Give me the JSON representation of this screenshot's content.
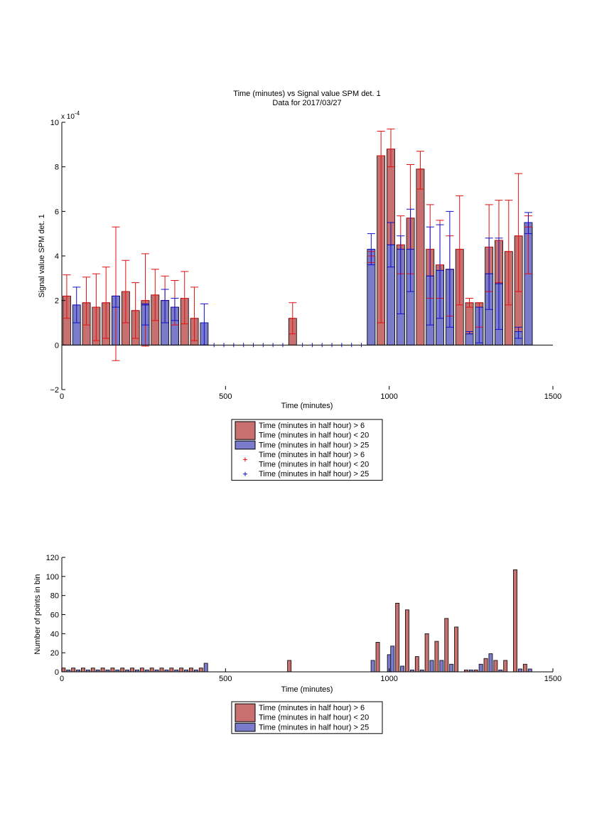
{
  "chart_data": [
    {
      "type": "bar",
      "title": "Time (minutes) vs Signal value SPM det. 1",
      "subtitle": "Data for 2017/03/27",
      "xlabel": "Time (minutes)",
      "ylabel": "Signal value SPM det. 1",
      "exponent_label": "x 10",
      "exponent_power": "-4",
      "xlim": [
        0,
        1500
      ],
      "ylim": [
        -2,
        10
      ],
      "xticks": [
        "0",
        "500",
        "1000",
        "1500"
      ],
      "yticks": [
        "−2",
        "0",
        "2",
        "4",
        "6",
        "8",
        "10"
      ],
      "legend_position": "below",
      "legend": [
        {
          "text": [
            "Time (minutes in half hour) > 6",
            "Time (minutes in half hour) < 20"
          ],
          "marker": "patch",
          "color": "#c87070"
        },
        {
          "text": [
            "Time (minutes in half hour) > 25"
          ],
          "marker": "patch",
          "color": "#7b7bcc"
        },
        {
          "text": [
            "Time (minutes in half hour) > 6",
            "Time (minutes in half hour) < 20"
          ],
          "marker": "plus",
          "color": "#e01010"
        },
        {
          "text": [
            "Time (minutes in half hour) > 25"
          ],
          "marker": "plus",
          "color": "#1010c8"
        }
      ],
      "series": [
        {
          "name": "Time (minutes in half hour) > 6 / Time (minutes in half hour) < 20",
          "color": "#c87070",
          "error_color": "#e01010",
          "x": [
            15,
            75,
            105,
            135,
            165,
            195,
            225,
            255,
            285,
            315,
            345,
            375,
            405,
            705,
            945,
            975,
            1005,
            1035,
            1065,
            1095,
            1125,
            1155,
            1185,
            1215,
            1245,
            1275,
            1305,
            1335,
            1365,
            1395,
            1425
          ],
          "values": [
            2.2,
            1.9,
            1.7,
            1.9,
            2.2,
            2.4,
            1.55,
            2.0,
            2.25,
            2.0,
            1.7,
            2.1,
            1.2,
            1.2,
            4.0,
            8.5,
            8.8,
            4.5,
            5.7,
            7.9,
            4.3,
            3.6,
            3.4,
            4.3,
            1.9,
            1.9,
            4.4,
            4.7,
            4.2,
            4.9,
            5.3
          ],
          "error_low": [
            1.2,
            0.9,
            0.2,
            0.3,
            -0.7,
            1.0,
            0.3,
            -0.05,
            1.1,
            1.0,
            0.9,
            0.95,
            0.2,
            0.5,
            3.7,
            1.0,
            8.0,
            3.2,
            3.2,
            7.0,
            2.1,
            2.1,
            1.3,
            1.8,
            1.7,
            0.8,
            2.4,
            2.8,
            1.8,
            2.4,
            3.2
          ],
          "error_high": [
            3.15,
            3.05,
            3.2,
            3.5,
            5.3,
            3.8,
            2.8,
            4.1,
            3.4,
            3.1,
            2.9,
            3.3,
            2.6,
            1.9,
            4.2,
            9.6,
            9.7,
            5.8,
            8.1,
            8.7,
            6.3,
            5.6,
            4.9,
            6.7,
            2.1,
            1.9,
            6.3,
            6.5,
            6.5,
            7.7,
            5.8
          ]
        },
        {
          "name": "Time (minutes in half hour) > 25",
          "color": "#7b7bcc",
          "error_color": "#1010c8",
          "x": [
            45,
            165,
            255,
            315,
            345,
            435,
            945,
            1005,
            1035,
            1065,
            1125,
            1155,
            1185,
            1245,
            1275,
            1305,
            1335,
            1395,
            1425
          ],
          "values": [
            1.8,
            2.2,
            1.8,
            2.0,
            1.7,
            1.0,
            4.3,
            4.5,
            4.3,
            4.3,
            3.1,
            3.35,
            3.4,
            0.5,
            1.7,
            3.2,
            2.75,
            0.6,
            5.5
          ],
          "error_low": [
            1.0,
            1.7,
            0.9,
            1.0,
            1.1,
            0.0,
            3.6,
            3.5,
            1.4,
            2.4,
            0.9,
            1.2,
            0.8,
            0.5,
            0.1,
            1.6,
            0.7,
            0.3,
            5.0
          ],
          "error_high": [
            2.6,
            2.2,
            1.85,
            2.5,
            2.1,
            1.85,
            5.0,
            5.5,
            4.9,
            6.1,
            5.3,
            5.4,
            6.0,
            0.6,
            1.7,
            4.8,
            4.8,
            0.8,
            5.95
          ]
        }
      ],
      "zero_markers_x": [
        465,
        495,
        525,
        555,
        585,
        615,
        645,
        675,
        735,
        765,
        795,
        825,
        855,
        885,
        915
      ]
    },
    {
      "type": "bar",
      "xlabel": "Time (minutes)",
      "ylabel": "Number of points in bin",
      "xlim": [
        0,
        1500
      ],
      "ylim": [
        0,
        120
      ],
      "xticks": [
        "0",
        "500",
        "1000",
        "1500"
      ],
      "yticks": [
        "0",
        "20",
        "40",
        "60",
        "80",
        "100",
        "120"
      ],
      "legend_position": "below",
      "legend": [
        {
          "text": [
            "Time (minutes in half hour) > 6",
            "Time (minutes in half hour) < 20"
          ],
          "marker": "patch",
          "color": "#c87070"
        },
        {
          "text": [
            "Time (minutes in half hour) > 25"
          ],
          "marker": "patch",
          "color": "#7b7bcc"
        }
      ],
      "series": [
        {
          "name": "Time (minutes in half hour) > 6 / Time (minutes in half hour) < 20",
          "color": "#c87070",
          "x": [
            5,
            35,
            65,
            95,
            125,
            155,
            185,
            215,
            245,
            275,
            305,
            335,
            365,
            395,
            425,
            695,
            965,
            1025,
            1055,
            1085,
            1115,
            1145,
            1175,
            1205,
            1235,
            1265,
            1295,
            1325,
            1355,
            1385,
            1415
          ],
          "values": [
            4,
            4,
            4,
            4,
            4,
            4,
            4,
            4,
            4,
            4,
            4,
            4,
            4,
            4,
            4,
            12,
            31,
            72,
            65,
            16,
            40,
            32,
            56,
            47,
            2,
            2,
            14,
            12,
            12,
            107,
            8
          ]
        },
        {
          "name": "Time (minutes in half hour) > 25",
          "color": "#7b7bcc",
          "x": [
            20,
            50,
            80,
            110,
            140,
            170,
            200,
            230,
            260,
            290,
            320,
            350,
            380,
            410,
            440,
            950,
            1000,
            1010,
            1040,
            1070,
            1100,
            1130,
            1160,
            1190,
            1250,
            1280,
            1310,
            1340,
            1400,
            1430
          ],
          "values": [
            2,
            2,
            2,
            2,
            2,
            2,
            2,
            2,
            2,
            2,
            2,
            2,
            2,
            2,
            9,
            12,
            18,
            27,
            6,
            2,
            2,
            12,
            12,
            8,
            2,
            8,
            19,
            2,
            3,
            3
          ]
        }
      ]
    }
  ]
}
